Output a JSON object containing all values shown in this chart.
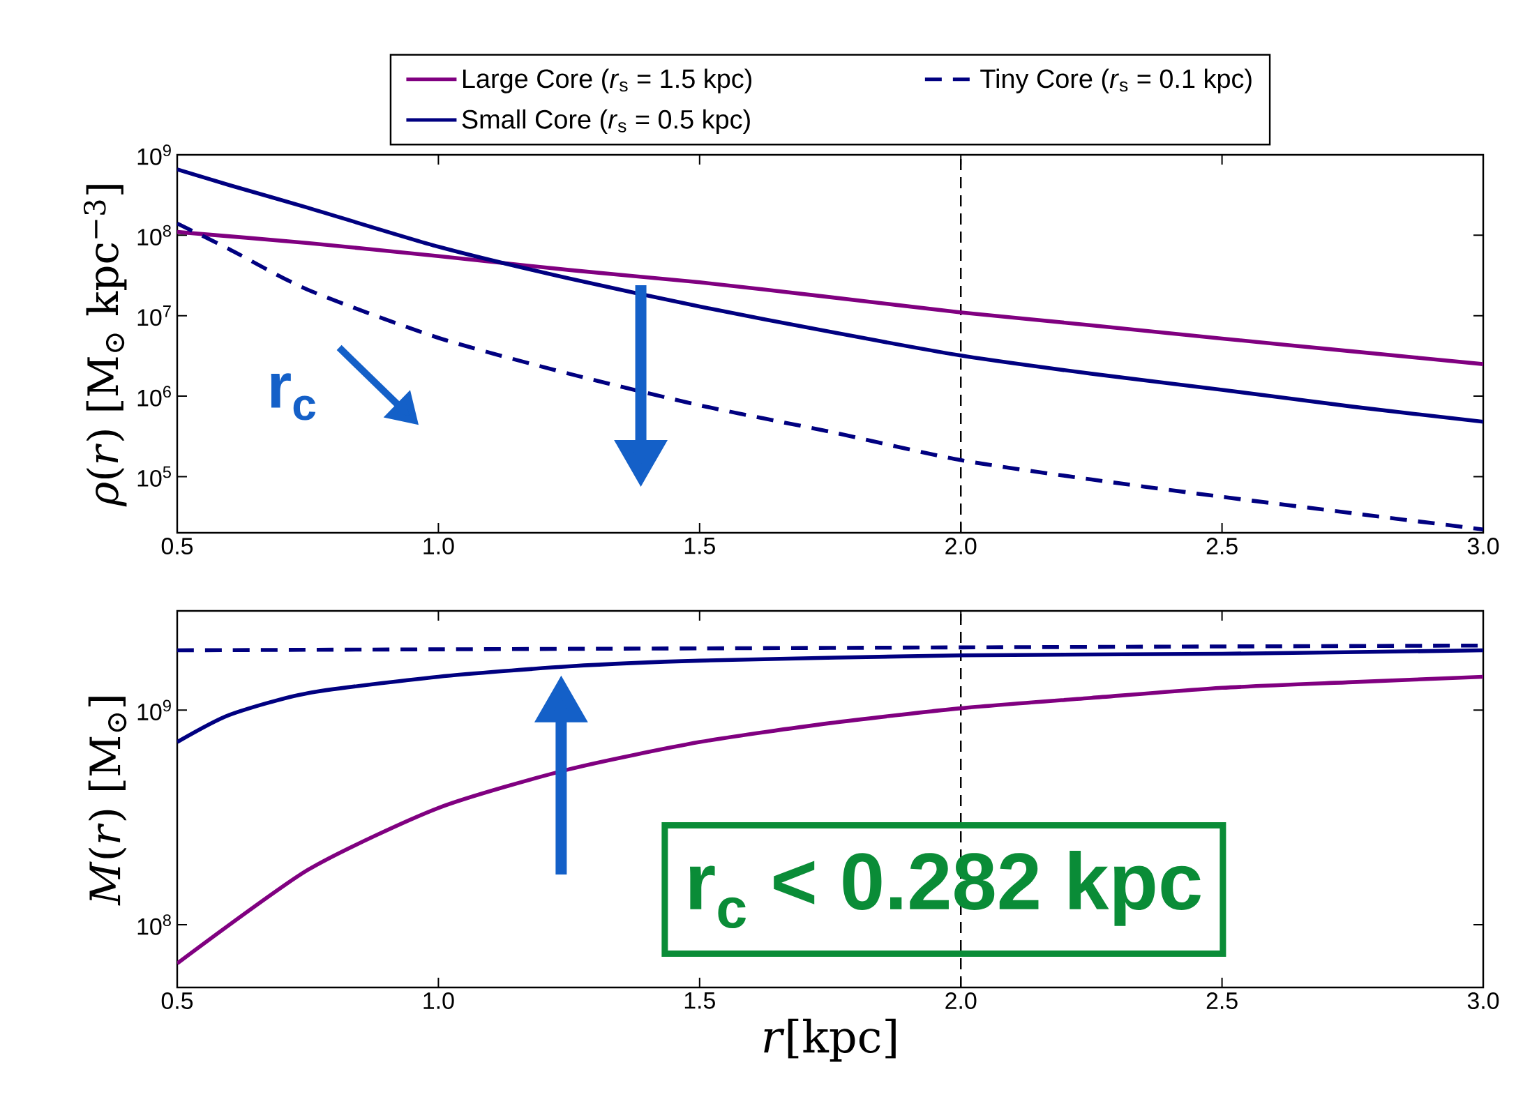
{
  "chart_data": [
    {
      "type": "line",
      "ylabel": "*ρ*(*r*) [M$_{⊙}$ kpc$^{−3}$]",
      "log": "y",
      "legend": "top",
      "marker": "none",
      "xlim": [
        0.5,
        3.0
      ],
      "ylim": [
        20000,
        1000000000
      ],
      "xticks": [
        {
          "value": 0.5,
          "label": "0.5"
        },
        {
          "value": 1.0,
          "label": "1.0"
        },
        {
          "value": 1.5,
          "label": "1.5"
        },
        {
          "value": 2.0,
          "label": "2.0"
        },
        {
          "value": 2.5,
          "label": "2.5"
        },
        {
          "value": 3.0,
          "label": "3.0"
        }
      ],
      "yticks": [
        {
          "value": 100000,
          "label": "10$^{5}$"
        },
        {
          "value": 1000000,
          "label": "10$^{6}$"
        },
        {
          "value": 10000000,
          "label": "10$^{7}$"
        },
        {
          "value": 100000000,
          "label": "10$^{8}$"
        },
        {
          "value": 1000000000,
          "label": "10$^{9}$"
        }
      ],
      "ref_lines": [
        {
          "axis": "x",
          "value": 2.0,
          "color": "#000000",
          "line_style": "dashed"
        }
      ],
      "annotations": [
        "r$_{c}$"
      ],
      "series": [
        {
          "name": "Large Core  (*r*$_{s}$ = 1.5 kpc)",
          "color": "#800080",
          "line_style": "solid",
          "x": [
            0.5,
            0.75,
            1.0,
            1.25,
            1.5,
            1.75,
            2.0,
            2.25,
            2.5,
            2.75,
            3.0
          ],
          "values": [
            110000000,
            80000000,
            55000000,
            37000000,
            26000000,
            17000000,
            11000000,
            7600000,
            5200000,
            3600000,
            2500000
          ]
        },
        {
          "name": "Small Core  (*r*$_{s}$ = 0.5 kpc)",
          "color": "#000080",
          "line_style": "solid",
          "x": [
            0.5,
            0.6,
            0.75,
            1.0,
            1.25,
            1.5,
            1.75,
            2.0,
            2.25,
            2.5,
            2.75,
            3.0
          ],
          "values": [
            660000000,
            420000000,
            220000000,
            72000000,
            29000000,
            13000000,
            6300000,
            3200000,
            1900000,
            1200000,
            740000,
            480000
          ]
        },
        {
          "name": "Tiny Core   (*r*$_{s}$ = 0.1 kpc)",
          "color": "#000080",
          "line_style": "dashed",
          "x": [
            0.5,
            0.6,
            0.75,
            1.0,
            1.25,
            1.5,
            1.75,
            2.0,
            2.25,
            2.5,
            2.75,
            3.0
          ],
          "values": [
            140000000,
            67000000,
            21000000,
            5300000,
            1900000,
            770000,
            360000,
            160000,
            92000,
            56000,
            35000,
            22000
          ]
        }
      ]
    },
    {
      "type": "line",
      "ylabel": "*M*(*r*) [M$_{⊙}$]",
      "xlabel": "*r*[kpc]",
      "log": "y",
      "marker": "none",
      "xlim": [
        0.5,
        3.0
      ],
      "ylim": [
        51000000,
        2900000000
      ],
      "xticks": [
        {
          "value": 0.5,
          "label": "0.5"
        },
        {
          "value": 1.0,
          "label": "1.0"
        },
        {
          "value": 1.5,
          "label": "1.5"
        },
        {
          "value": 2.0,
          "label": "2.0"
        },
        {
          "value": 2.5,
          "label": "2.5"
        },
        {
          "value": 3.0,
          "label": "3.0"
        }
      ],
      "yticks": [
        {
          "value": 100000000,
          "label": "10$^{8}$"
        },
        {
          "value": 1000000000,
          "label": "10$^{9}$"
        }
      ],
      "ref_lines": [
        {
          "axis": "x",
          "value": 2.0,
          "color": "#000000",
          "line_style": "dashed"
        }
      ],
      "annotations": [
        "**r$_{c}$ < 0.282 kpc**"
      ],
      "series": [
        {
          "color": "#800080",
          "line_style": "solid",
          "x": [
            0.5,
            0.75,
            1.0,
            1.25,
            1.5,
            1.75,
            2.0,
            2.25,
            2.5,
            2.75,
            3.0
          ],
          "values": [
            66000000,
            180000000,
            350000000,
            530000000,
            710000000,
            870000000,
            1020000000,
            1140000000,
            1270000000,
            1350000000,
            1430000000
          ]
        },
        {
          "color": "#000080",
          "line_style": "solid",
          "x": [
            0.5,
            0.6,
            0.75,
            1.0,
            1.25,
            1.5,
            2.0,
            2.5,
            3.0
          ],
          "values": [
            710000000,
            950000000,
            1200000000,
            1430000000,
            1600000000,
            1700000000,
            1800000000,
            1830000000,
            1900000000
          ]
        },
        {
          "color": "#000080",
          "line_style": "dashed",
          "x": [
            0.5,
            1.0,
            1.5,
            2.0,
            2.5,
            3.0
          ],
          "values": [
            1900000000,
            1920000000,
            1940000000,
            1960000000,
            1980000000,
            2000000000
          ]
        }
      ]
    }
  ]
}
